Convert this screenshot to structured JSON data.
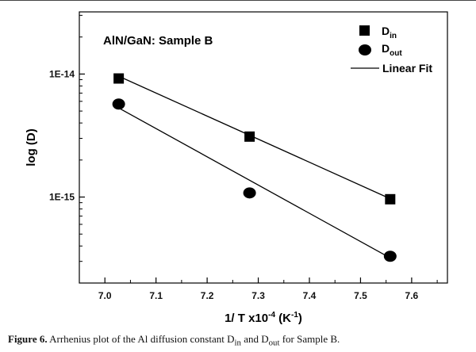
{
  "chart_data": {
    "type": "scatter",
    "annotation": "AlN/GaN: Sample B",
    "xlabel": {
      "text": "1/ T x10",
      "sup1": "-4",
      "mid": " (K",
      "sup2": "-1",
      "end": ")"
    },
    "ylabel": "log (D)",
    "xlim": [
      6.95,
      7.67
    ],
    "ylim": [
      2e-16,
      3.2e-14
    ],
    "yscale": "log",
    "xticks": [
      "7.0",
      "7.1",
      "7.2",
      "7.3",
      "7.4",
      "7.5",
      "7.6"
    ],
    "xtick_values": [
      7.0,
      7.1,
      7.2,
      7.3,
      7.4,
      7.5,
      7.6
    ],
    "yticks": [
      "1E-14",
      "1E-15"
    ],
    "ytick_values": [
      1e-14,
      1e-15
    ],
    "grid": false,
    "legend_position": "top-right",
    "legend": [
      {
        "base": "D",
        "sub": "in",
        "marker": "square"
      },
      {
        "base": "D",
        "sub": "out",
        "marker": "circle"
      },
      {
        "label": "Linear Fit",
        "marker": "line"
      }
    ],
    "series": [
      {
        "marker": "square",
        "x": [
          7.027,
          7.283,
          7.558
        ],
        "y": [
          9.2e-15,
          3.1e-15,
          9.6e-16
        ],
        "fit": {
          "x": [
            7.027,
            7.558
          ],
          "y": [
            9.6e-15,
            9.7e-16
          ]
        }
      },
      {
        "marker": "circle",
        "x": [
          7.027,
          7.283,
          7.558
        ],
        "y": [
          5.7e-15,
          1.08e-15,
          3.3e-16
        ],
        "fit": {
          "x": [
            7.027,
            7.558
          ],
          "y": [
            5.3e-15,
            3.2e-16
          ]
        }
      }
    ]
  },
  "caption": {
    "label": "Figure 6.",
    "t1": " Arrhenius plot of the Al diffusion constant D",
    "s1": "in",
    "t2": " and D",
    "s2": "out",
    "t3": " for Sample B."
  }
}
